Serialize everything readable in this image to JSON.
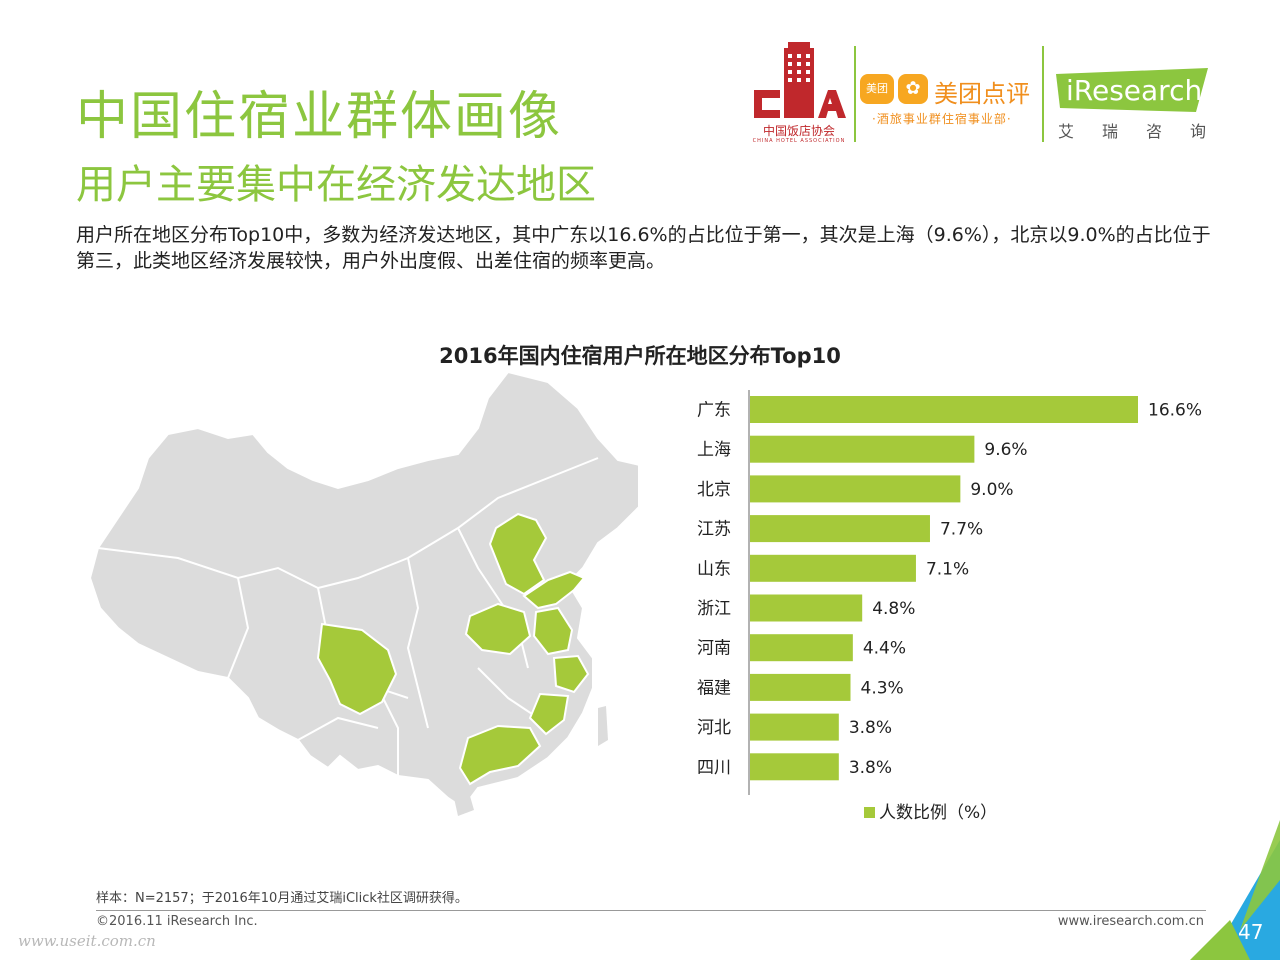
{
  "header": {
    "title": "中国住宿业群体画像",
    "subtitle": "用户主要集中在经济发达地区",
    "description": "用户所在地区分布Top10中，多数为经济发达地区，其中广东以16.6%的占比位于第一，其次是上海（9.6%），北京以9.0%的占比位于第三，此类地区经济发展较快，用户外出度假、出差住宿的频率更高。"
  },
  "logos": {
    "cha_cn": "中国饭店协会",
    "cha_en": "CHINA HOTEL ASSOCIATION",
    "meituan_badge": "美团",
    "meituan_name": "美团点评",
    "meituan_sub": "·酒旅事业群住宿事业部·",
    "iresearch_name": "iResearch",
    "iresearch_cn": "艾瑞咨询"
  },
  "chart_data": {
    "type": "bar",
    "orientation": "horizontal",
    "title": "2016年国内住宿用户所在地区分布Top10",
    "categories": [
      "广东",
      "上海",
      "北京",
      "江苏",
      "山东",
      "浙江",
      "河南",
      "福建",
      "河北",
      "四川"
    ],
    "series": [
      {
        "name": "人数比例（%）",
        "values": [
          16.6,
          9.6,
          9.0,
          7.7,
          7.1,
          4.8,
          4.4,
          4.3,
          3.8,
          3.8
        ]
      }
    ],
    "value_labels": [
      "16.6%",
      "9.6%",
      "9.0%",
      "7.7%",
      "7.1%",
      "4.8%",
      "4.4%",
      "4.3%",
      "3.8%",
      "3.8%"
    ],
    "xlim": [
      0,
      16.6
    ],
    "legend_position": "bottom",
    "grid": false
  },
  "colors": {
    "accent": "#8cc63f",
    "bar": "#a5c93a",
    "map_base": "#dcdcdc",
    "map_highlight": "#a5c93a",
    "corner_blue": "#29a9e1"
  },
  "footer": {
    "note": "样本：N=2157；于2016年10月通过艾瑞iClick社区调研获得。",
    "copyright": "©2016.11 iResearch Inc.",
    "website": "www.iresearch.com.cn",
    "page": "47",
    "watermark": "www.useit.com.cn"
  }
}
